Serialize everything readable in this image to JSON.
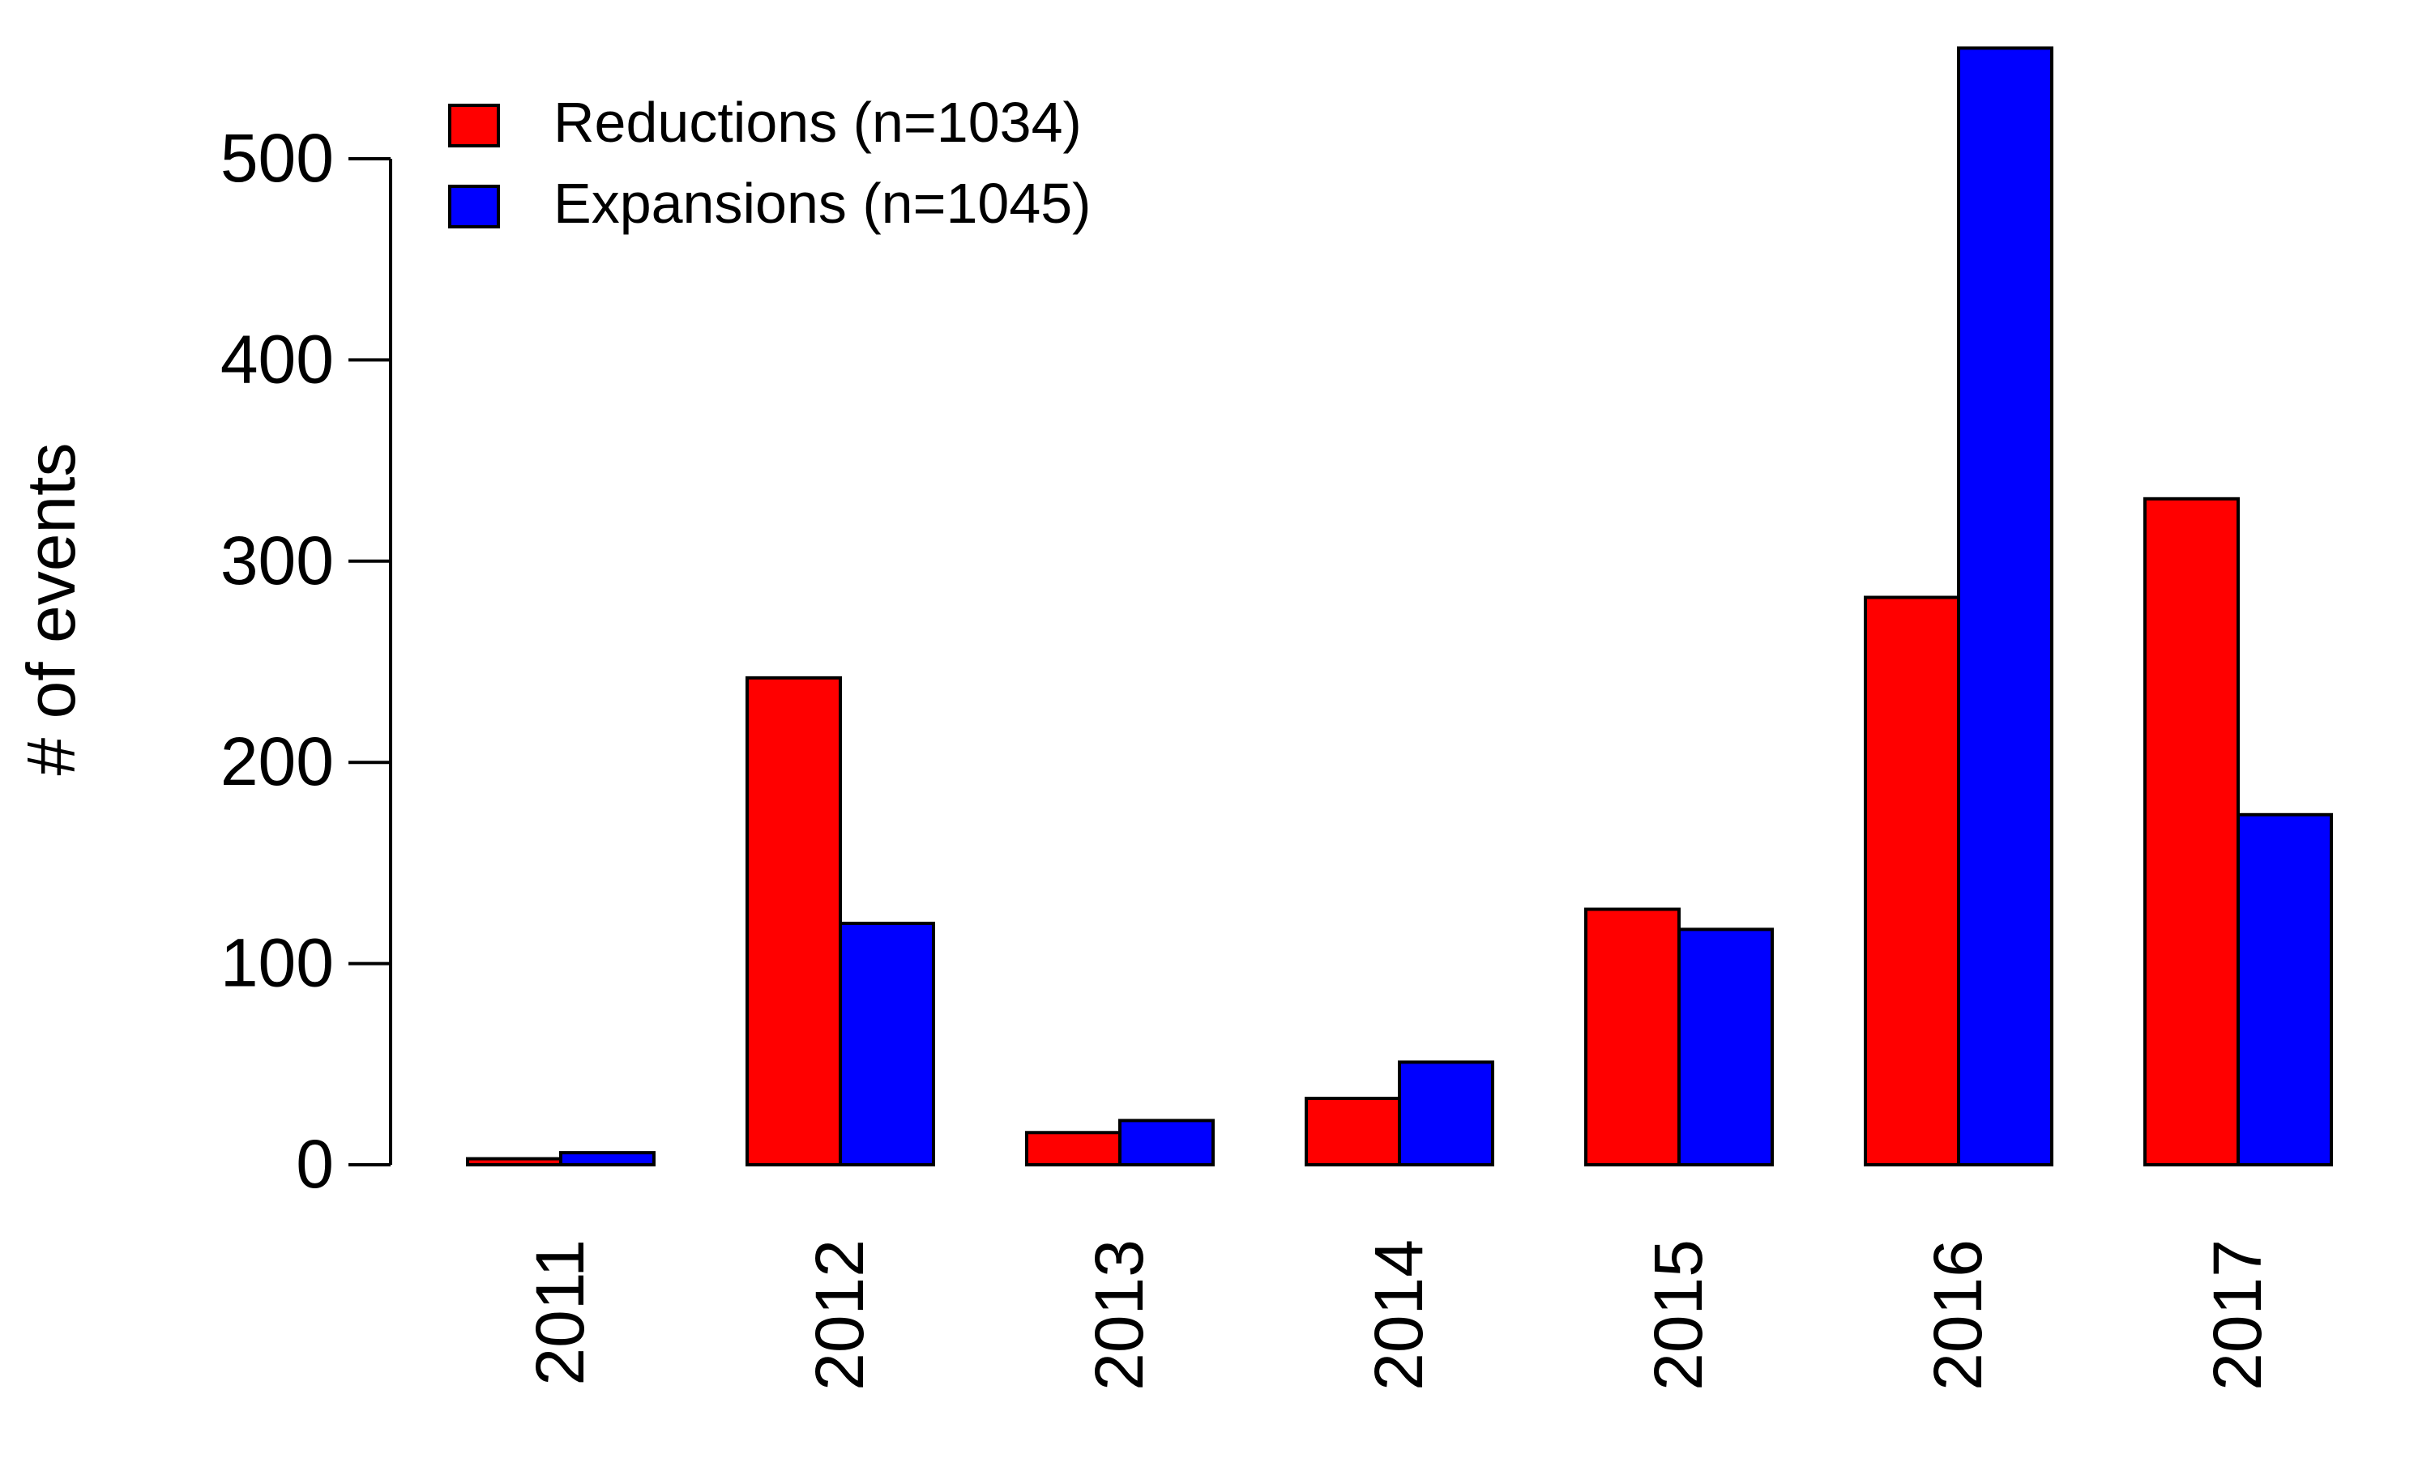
{
  "chart_data": {
    "type": "bar",
    "categories": [
      "2011",
      "2012",
      "2013",
      "2014",
      "2015",
      "2016",
      "2017"
    ],
    "series": [
      {
        "name": "Reductions (n=1034)",
        "color": "#ff0000",
        "values": [
          3,
          242,
          16,
          33,
          127,
          282,
          331
        ]
      },
      {
        "name": "Expansions (n=1045)",
        "color": "#0000ff",
        "values": [
          6,
          120,
          22,
          51,
          117,
          555,
          174
        ]
      }
    ],
    "ylabel": "# of events",
    "xlabel": "",
    "yticks": [
      0,
      100,
      200,
      300,
      400,
      500
    ],
    "ylim": [
      0,
      555
    ],
    "legend_position": "top-left",
    "grid": false
  }
}
